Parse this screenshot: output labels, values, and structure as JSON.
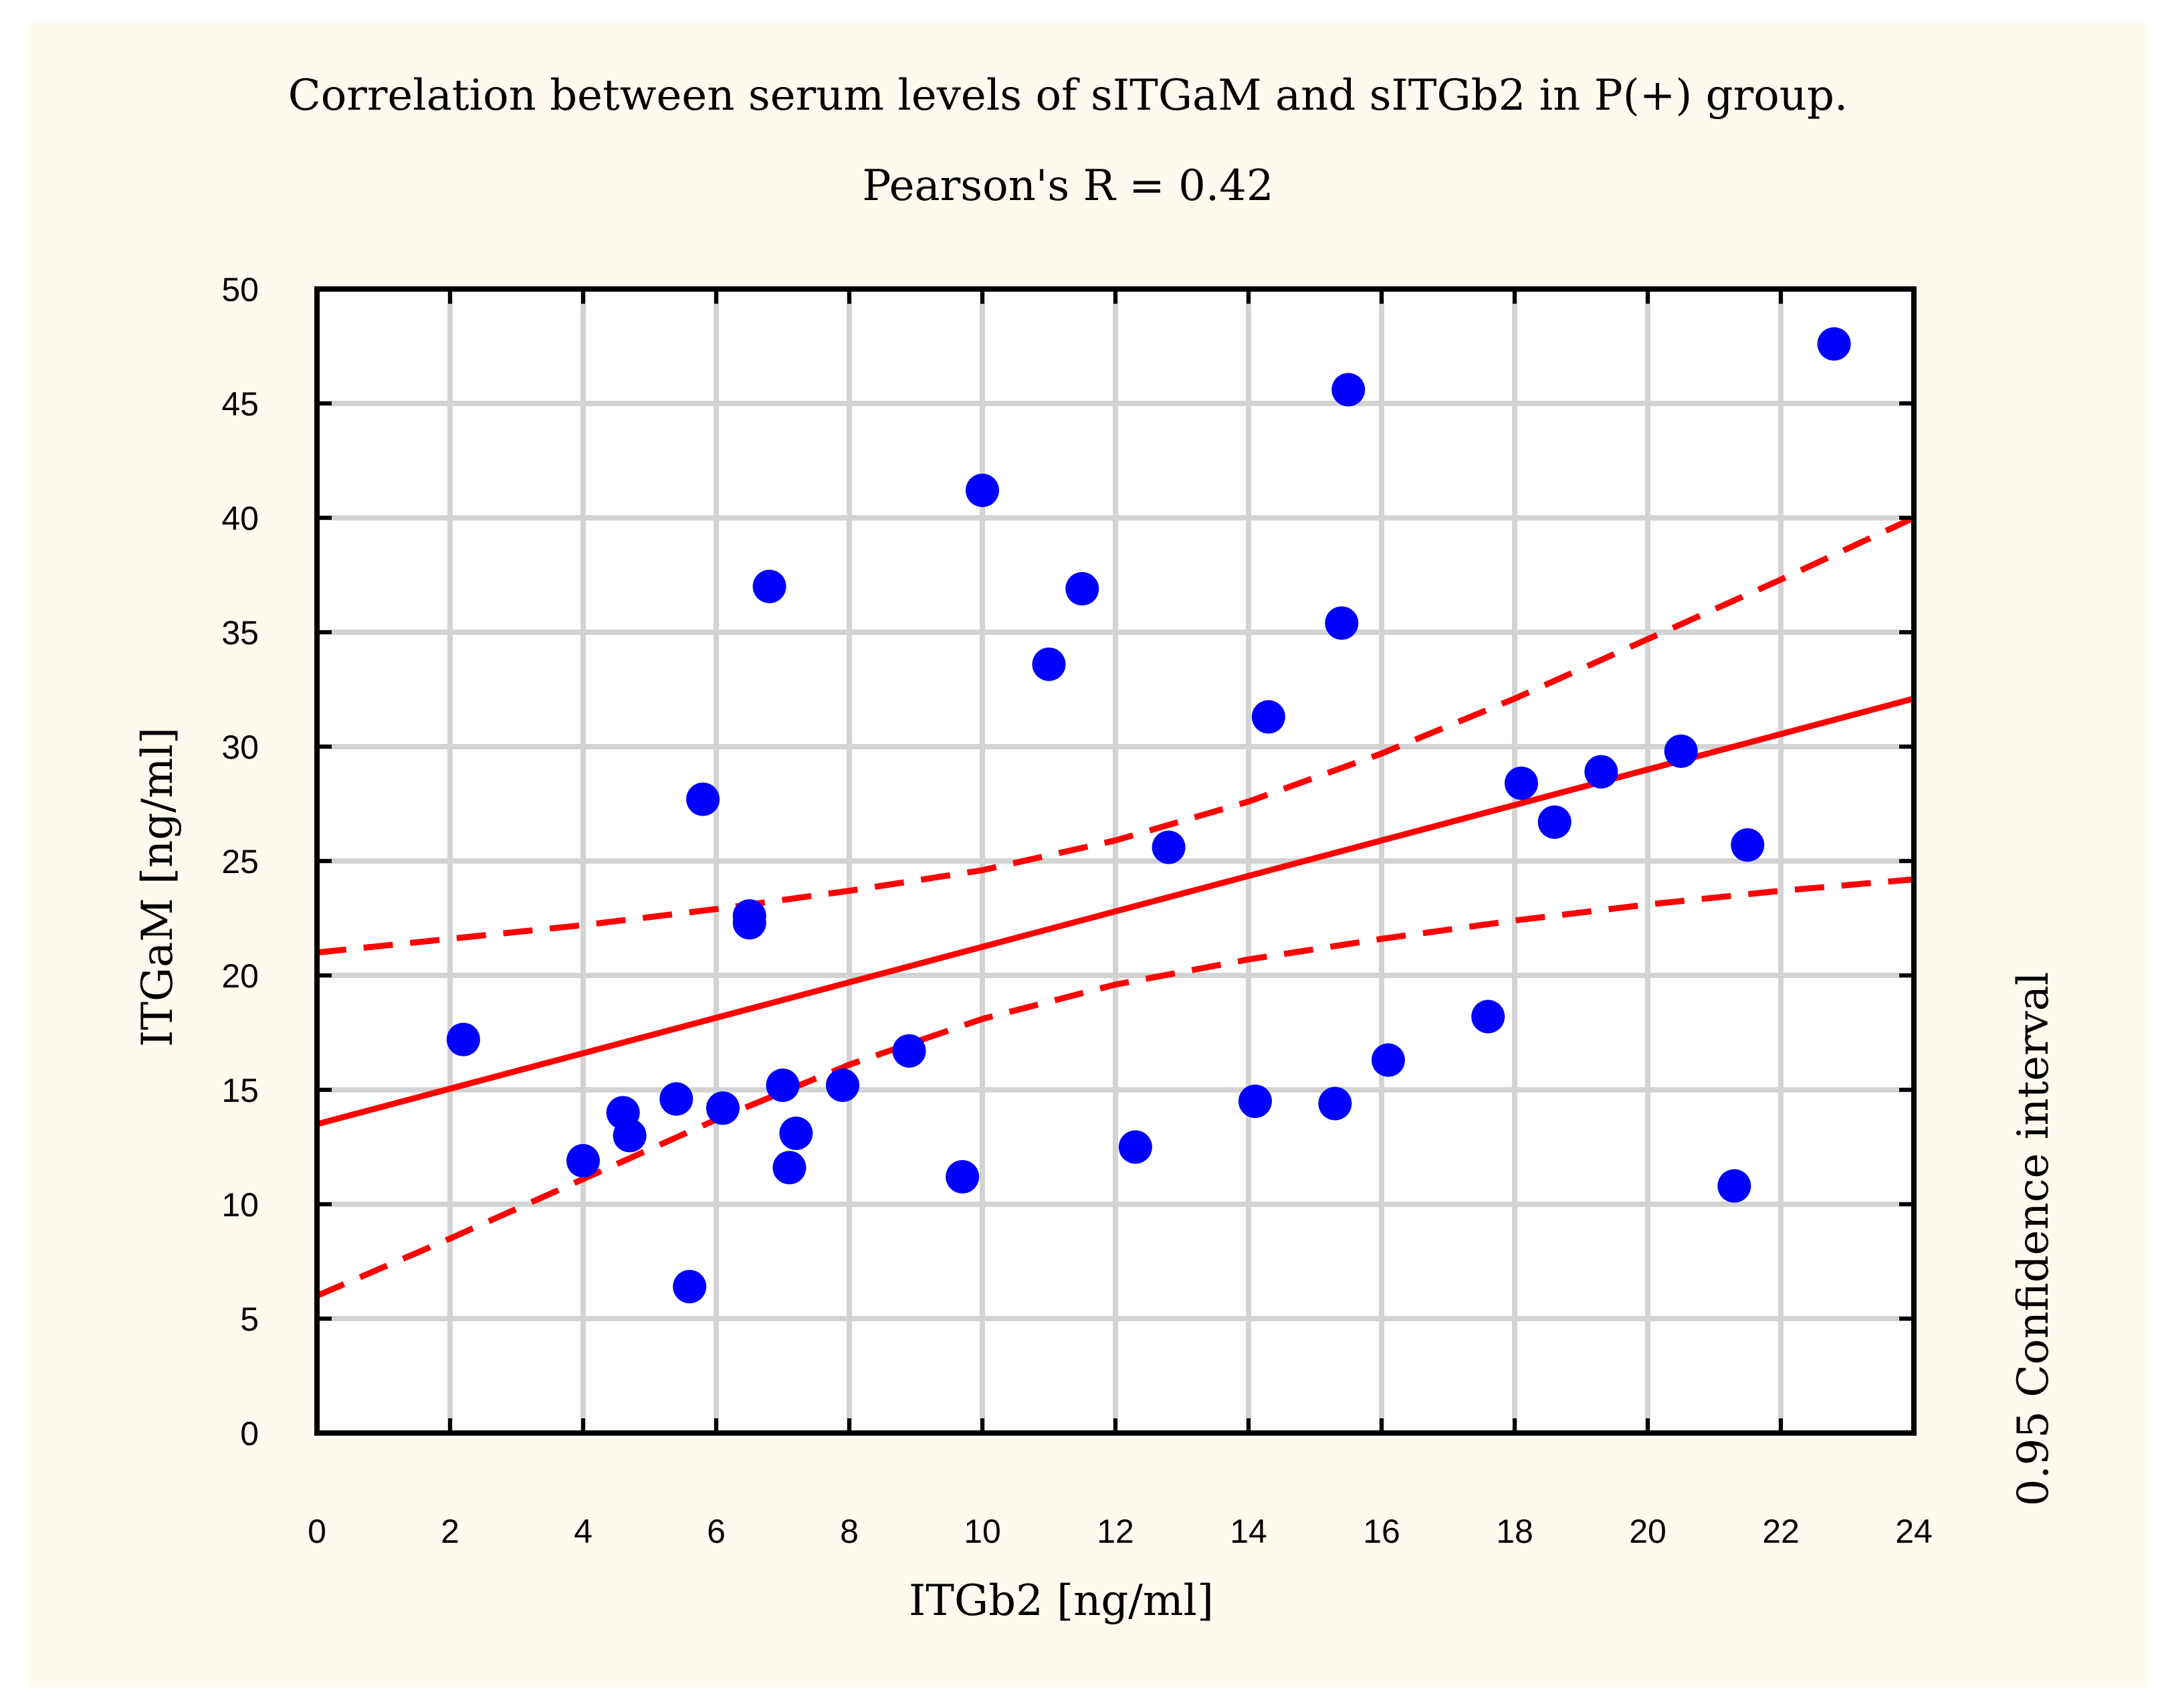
{
  "chart_data": {
    "type": "scatter",
    "title": "Correlation between serum levels of sITGaM and sITGb2 in P(+) group.",
    "subtitle": "Pearson's R = 0.42",
    "xlabel": "ITGb2 [ng/ml]",
    "ylabel": "ITGaM [ng/ml]",
    "right_label": "0.95 Confidence interval",
    "xlim": [
      0,
      24
    ],
    "ylim": [
      0,
      50
    ],
    "x_ticks": [
      0,
      2,
      4,
      6,
      8,
      10,
      12,
      14,
      16,
      18,
      20,
      22,
      24
    ],
    "y_ticks": [
      0,
      5,
      10,
      15,
      20,
      25,
      30,
      35,
      40,
      45,
      50
    ],
    "grid": true,
    "colors": {
      "points": "#0000ff",
      "lines": "#ff0000",
      "grid": "#d3d3d3",
      "background": "#fefaf0"
    },
    "series": [
      {
        "name": "observations",
        "kind": "points",
        "x": [
          2.2,
          4.0,
          4.6,
          4.7,
          5.4,
          5.6,
          5.8,
          6.1,
          6.5,
          6.5,
          6.8,
          7.0,
          7.1,
          7.2,
          7.9,
          8.9,
          9.7,
          10.0,
          11.0,
          11.5,
          12.3,
          12.8,
          14.1,
          14.3,
          15.3,
          15.4,
          15.5,
          16.1,
          17.6,
          18.1,
          18.6,
          19.3,
          20.5,
          21.3,
          21.5,
          22.8
        ],
        "y": [
          17.2,
          11.9,
          14.0,
          13.0,
          14.6,
          6.4,
          27.7,
          14.2,
          22.6,
          22.3,
          37.0,
          15.2,
          11.6,
          13.1,
          15.2,
          16.7,
          11.2,
          41.2,
          33.6,
          36.9,
          12.5,
          25.6,
          14.5,
          31.3,
          14.4,
          35.4,
          45.6,
          16.3,
          18.2,
          28.4,
          26.7,
          28.9,
          29.8,
          10.8,
          25.7,
          47.6
        ]
      },
      {
        "name": "regression",
        "kind": "solid-line",
        "x": [
          0,
          24
        ],
        "y": [
          13.5,
          32.1
        ]
      },
      {
        "name": "upper 0.95 confidence bound",
        "kind": "dashed-line",
        "x": [
          0,
          2,
          4,
          6,
          8,
          10,
          12,
          14,
          16,
          18,
          20,
          22,
          24
        ],
        "y": [
          21.0,
          21.6,
          22.2,
          22.9,
          23.7,
          24.6,
          25.9,
          27.6,
          29.7,
          32.1,
          34.7,
          37.3,
          40.0
        ]
      },
      {
        "name": "lower 0.95 confidence bound",
        "kind": "dashed-line",
        "x": [
          0,
          2,
          4,
          6,
          8,
          10,
          12,
          14,
          16,
          18,
          20,
          22,
          24
        ],
        "y": [
          6.0,
          8.5,
          11.1,
          13.7,
          16.1,
          18.1,
          19.6,
          20.7,
          21.6,
          22.4,
          23.1,
          23.7,
          24.2
        ]
      }
    ]
  }
}
